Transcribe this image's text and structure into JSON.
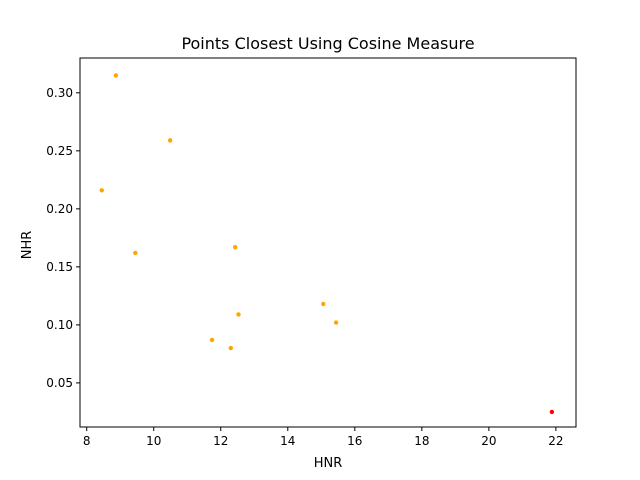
{
  "chart_data": {
    "type": "scatter",
    "title": "Points Closest Using Cosine Measure",
    "xlabel": "HNR",
    "ylabel": "NHR",
    "xlim": [
      7.8,
      22.6
    ],
    "ylim": [
      0.012,
      0.33
    ],
    "xticks": [
      8,
      10,
      12,
      14,
      16,
      18,
      20,
      22
    ],
    "yticks": [
      0.05,
      0.1,
      0.15,
      0.2,
      0.25,
      0.3
    ],
    "xtick_labels": [
      "8",
      "10",
      "12",
      "14",
      "16",
      "18",
      "20",
      "22"
    ],
    "ytick_labels": [
      "0.05",
      "0.10",
      "0.15",
      "0.20",
      "0.25",
      "0.30"
    ],
    "grid": false,
    "series": [
      {
        "color": "#ffa500",
        "points": [
          {
            "x": 8.87,
            "y": 0.315
          },
          {
            "x": 10.49,
            "y": 0.259
          },
          {
            "x": 8.45,
            "y": 0.216
          },
          {
            "x": 9.45,
            "y": 0.162
          },
          {
            "x": 12.43,
            "y": 0.167
          },
          {
            "x": 12.53,
            "y": 0.109
          },
          {
            "x": 11.74,
            "y": 0.087
          },
          {
            "x": 12.3,
            "y": 0.08
          },
          {
            "x": 15.06,
            "y": 0.118
          },
          {
            "x": 15.44,
            "y": 0.102
          }
        ]
      },
      {
        "color": "#ff0000",
        "points": [
          {
            "x": 21.88,
            "y": 0.025
          }
        ]
      }
    ]
  }
}
